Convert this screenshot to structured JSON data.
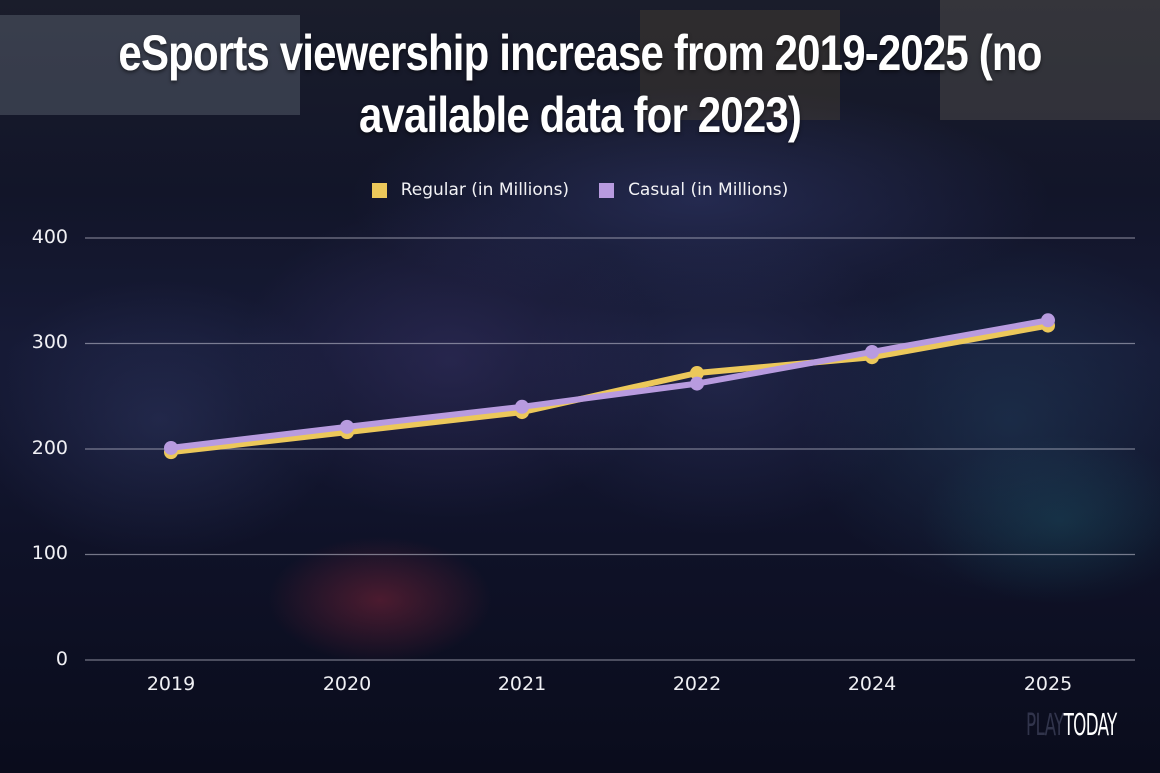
{
  "title": "eSports viewership increase from 2019-2025 (no available data for 2023)",
  "title_line1": "eSports viewership increase from 2019-2025 (no",
  "title_line2": "available data for 2023)",
  "legend": [
    {
      "label": "Regular (in Millions)",
      "color": "#ECC85A"
    },
    {
      "label": "Casual (in Millions)",
      "color": "#B89BDF"
    }
  ],
  "y_ticks": [
    "400",
    "300",
    "200",
    "100",
    "0"
  ],
  "x_ticks": [
    "2019",
    "2020",
    "2021",
    "2022",
    "2024",
    "2025"
  ],
  "logo": {
    "part1": "PLAY",
    "part2": "TODAY"
  },
  "chart_data": {
    "type": "line",
    "title": "eSports viewership increase from 2019-2025 (no available data for 2023)",
    "xlabel": "",
    "ylabel": "",
    "categories": [
      "2019",
      "2020",
      "2021",
      "2022",
      "2024",
      "2025"
    ],
    "series": [
      {
        "name": "Regular (in Millions)",
        "color": "#ECC85A",
        "values": [
          197,
          216,
          235,
          272,
          287,
          317
        ]
      },
      {
        "name": "Casual (in Millions)",
        "color": "#B89BDF",
        "values": [
          201,
          221,
          240,
          262,
          292,
          322
        ]
      }
    ],
    "ylim": [
      0,
      400
    ],
    "yticks": [
      0,
      100,
      200,
      300,
      400
    ],
    "grid": "horizontal",
    "legend_position": "top",
    "markers": true
  }
}
